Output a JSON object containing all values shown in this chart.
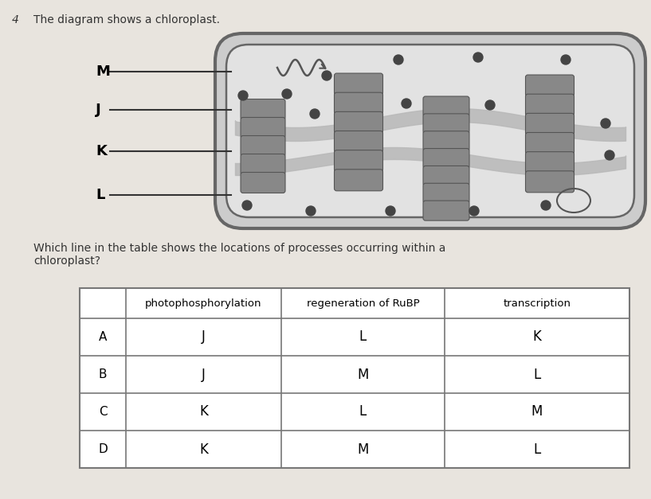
{
  "question_number": "4",
  "question_text": "The diagram shows a chloroplast.",
  "sub_question": "Which line in the table shows the locations of processes occurring within a\nchloroplast?",
  "background_color": "#e8e4de",
  "table": {
    "headers": [
      "",
      "photophosphorylation",
      "regeneration of RuBP",
      "transcription"
    ],
    "rows": [
      [
        "A",
        "J",
        "L",
        "K"
      ],
      [
        "B",
        "J",
        "M",
        "L"
      ],
      [
        "C",
        "K",
        "L",
        "M"
      ],
      [
        "D",
        "K",
        "M",
        "L"
      ]
    ]
  },
  "labels": [
    "M",
    "J",
    "K",
    "L"
  ],
  "granum_color": "#888888",
  "granum_edge_color": "#555555",
  "chloroplast_outer_color": "#cccccc",
  "chloroplast_inner_color": "#e0e0e0",
  "chloroplast_border_color": "#555555",
  "lamella_color": "#b8b8b8",
  "dot_color": "#444444",
  "dna_color": "#555555"
}
